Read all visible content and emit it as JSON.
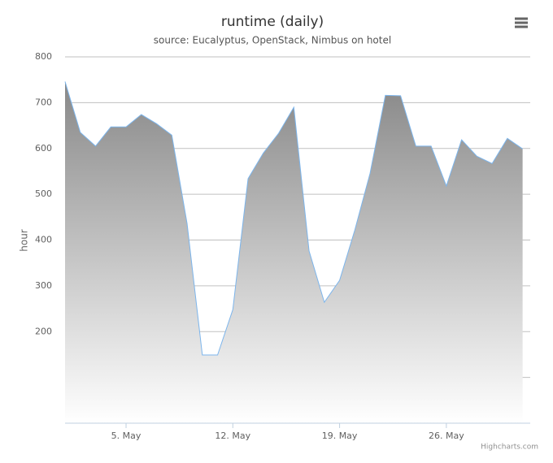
{
  "chart_data": {
    "type": "area",
    "title": "runtime (daily)",
    "subtitle": "source: Eucalyptus, OpenStack, Nimbus on hotel",
    "y_label": "hour",
    "credit": "Highcharts.com",
    "x": [
      1,
      2,
      3,
      4,
      5,
      6,
      7,
      8,
      9,
      10,
      11,
      12,
      13,
      14,
      15,
      16,
      17,
      18,
      19,
      20,
      21,
      22,
      23,
      24,
      25,
      26,
      27,
      28,
      29,
      30,
      31
    ],
    "series": [
      {
        "name": "runtime",
        "color": "#7cb5ec",
        "values": [
          746,
          635,
          605,
          647,
          647,
          674,
          654,
          629,
          436,
          149,
          149,
          248,
          534,
          590,
          633,
          690,
          376,
          264,
          312,
          422,
          546,
          716,
          715,
          605,
          605,
          518,
          619,
          583,
          567,
          622,
          599
        ]
      }
    ],
    "xlim": [
      1,
      31.5
    ],
    "xticks": [
      {
        "value": 5,
        "label": "5. May"
      },
      {
        "value": 12,
        "label": "12. May"
      },
      {
        "value": 19,
        "label": "19. May"
      },
      {
        "value": 26,
        "label": "26. May"
      }
    ],
    "ylim": [
      0,
      800
    ],
    "yticks": [
      200,
      300,
      400,
      500,
      600,
      700,
      800
    ],
    "grid": true
  }
}
